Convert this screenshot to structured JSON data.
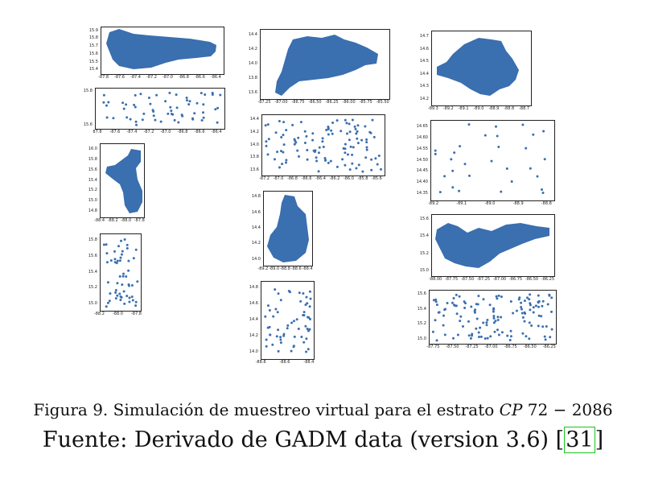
{
  "figure": {
    "caption_label": "Figura 9.",
    "caption_text": "Simulación de muestreo virtual para el estrato",
    "caption_math_italic": "CP",
    "caption_math_rest": "72 − 2086",
    "source_prefix": "Fuente: Derivado de GADM data (version 3.6) [",
    "source_ref": "31",
    "source_suffix": "]",
    "point_color": "#3a6fb0"
  },
  "panels": [
    {
      "id": "p1",
      "kind": "map",
      "xticks": [
        "-87.8",
        "-87.6",
        "-87.4",
        "-87.2",
        "-87.0",
        "-86.8",
        "-86.6",
        "-86.4"
      ],
      "yticks": [
        "15.9",
        "15.8",
        "15.7",
        "15.6",
        "15.5",
        "15.4"
      ]
    },
    {
      "id": "p2",
      "kind": "scatter",
      "xticks": [
        "87.8",
        "-87.6",
        "-87.4",
        "-87.2",
        "-87.0",
        "-86.8",
        "-86.6",
        "-86.4"
      ],
      "yticks": [
        "15.8",
        "15.6"
      ]
    },
    {
      "id": "p3",
      "kind": "map",
      "xticks": [
        "-88.4",
        "-88.2",
        "-88.0",
        "-87.8"
      ],
      "yticks": [
        "16.0",
        "15.8",
        "15.6",
        "15.4",
        "15.2",
        "15.0",
        "14.8"
      ]
    },
    {
      "id": "p4",
      "kind": "scatter",
      "xticks": [
        "-88.2",
        "-88.0",
        "-87.8"
      ],
      "yticks": [
        "15.8",
        "15.6",
        "15.4",
        "15.2",
        "15.0"
      ]
    },
    {
      "id": "p5",
      "kind": "map",
      "xticks": [
        "-87.25",
        "-87.00",
        "-86.75",
        "-86.50",
        "-86.25",
        "-86.00",
        "-85.75",
        "-85.50"
      ],
      "yticks": [
        "14.4",
        "14.2",
        "14.0",
        "13.8",
        "13.6"
      ]
    },
    {
      "id": "p6",
      "kind": "scatter",
      "xticks": [
        "-87.2",
        "-87.0",
        "-86.8",
        "-86.6",
        "-86.4",
        "-86.2",
        "-86.0",
        "-85.8",
        "-85.6"
      ],
      "yticks": [
        "14.4",
        "14.2",
        "14.0",
        "13.8",
        "13.6"
      ]
    },
    {
      "id": "p7",
      "kind": "map",
      "xticks": [
        "-89.2",
        "-89.0",
        "-88.8",
        "-88.6",
        "-88.4"
      ],
      "yticks": [
        "14.8",
        "14.6",
        "14.4",
        "14.2",
        "14.0"
      ]
    },
    {
      "id": "p8",
      "kind": "scatter",
      "xticks": [
        "-88.8",
        "-88.6",
        "-88.4"
      ],
      "yticks": [
        "14.8",
        "14.6",
        "14.4",
        "14.2",
        "14.0"
      ]
    },
    {
      "id": "p9",
      "kind": "map",
      "xticks": [
        "-89.3",
        "-89.2",
        "-89.1",
        "-89.0",
        "-88.9",
        "-88.8",
        "-88.7"
      ],
      "yticks": [
        "14.7",
        "14.6",
        "14.5",
        "14.4",
        "14.3",
        "14.2"
      ]
    },
    {
      "id": "p10",
      "kind": "scatter",
      "xticks": [
        "-89.2",
        "-89.1",
        "-89.0",
        "-88.9",
        "-88.8"
      ],
      "yticks": [
        "14.65",
        "14.60",
        "14.55",
        "14.50",
        "14.45",
        "14.40",
        "14.35"
      ]
    },
    {
      "id": "p11",
      "kind": "map",
      "xticks": [
        "-88.00",
        "-87.75",
        "-87.50",
        "-87.25",
        "-87.00",
        "-86.75",
        "-86.50",
        "-86.25"
      ],
      "yticks": [
        "15.6",
        "15.4",
        "15.2",
        "15.0"
      ]
    },
    {
      "id": "p12",
      "kind": "scatter",
      "xticks": [
        "-87.75",
        "-87.50",
        "-87.25",
        "-87.00",
        "-86.75",
        "-86.50",
        "-86.25"
      ],
      "yticks": [
        "15.6",
        "15.4",
        "15.2",
        "15.0"
      ]
    }
  ]
}
